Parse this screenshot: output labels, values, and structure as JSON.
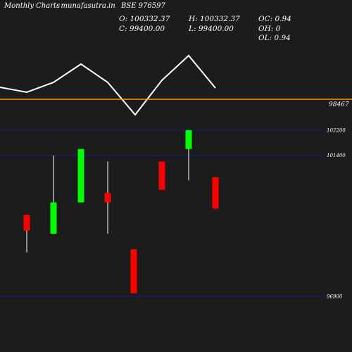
{
  "header": {
    "chart_label": "Monthly Charts",
    "site": "- munafasutra.in",
    "symbol": "BSE 976597"
  },
  "ohlc": {
    "open": "O: 100332.37",
    "high": "H: 100332.37",
    "close": "C: 99400.00",
    "low": "L: 99400.00",
    "oc": "OC: 0.94",
    "oh": "OH: 0",
    "ol": "OL: 0.94"
  },
  "colors": {
    "background": "#1c1c1c",
    "up": "#00ff00",
    "down": "#ff0000",
    "wick": "#ffffff",
    "reference_line": "#ff9900",
    "gridline": "#1a1a8c",
    "line": "#ffffff"
  },
  "chart_data": {
    "type": "candlestick",
    "reference": {
      "value": 98467,
      "label": "98467"
    },
    "y_ticks": [
      {
        "value": 102200,
        "label": "102200"
      },
      {
        "value": 101400,
        "label": "101400"
      },
      {
        "value": 96900,
        "label": "96900"
      }
    ],
    "ylim": [
      96900,
      102200
    ],
    "candles": [
      {
        "open": 99500,
        "high": 99500,
        "low": 98300,
        "close": 99000,
        "color": "red"
      },
      {
        "open": 98900,
        "high": 101400,
        "low": 98900,
        "close": 99900,
        "color": "green"
      },
      {
        "open": 99900,
        "high": 101600,
        "low": 99900,
        "close": 101600,
        "color": "green"
      },
      {
        "open": 100200,
        "high": 101200,
        "low": 98900,
        "close": 99900,
        "color": "red"
      },
      {
        "open": 98400,
        "high": 98400,
        "low": 97000,
        "close": 97000,
        "color": "red"
      },
      {
        "open": 101200,
        "high": 101200,
        "low": 100300,
        "close": 100300,
        "color": "red"
      },
      {
        "open": 101600,
        "high": 102200,
        "low": 100600,
        "close": 102200,
        "color": "green"
      },
      {
        "open": 100700,
        "high": 100700,
        "low": 99700,
        "close": 99700,
        "color": "red"
      }
    ],
    "line_series": [
      0.86,
      0.58,
      0.91,
      1.06,
      0.36,
      0.43,
      0.76,
      0.47,
      0.99
    ]
  }
}
